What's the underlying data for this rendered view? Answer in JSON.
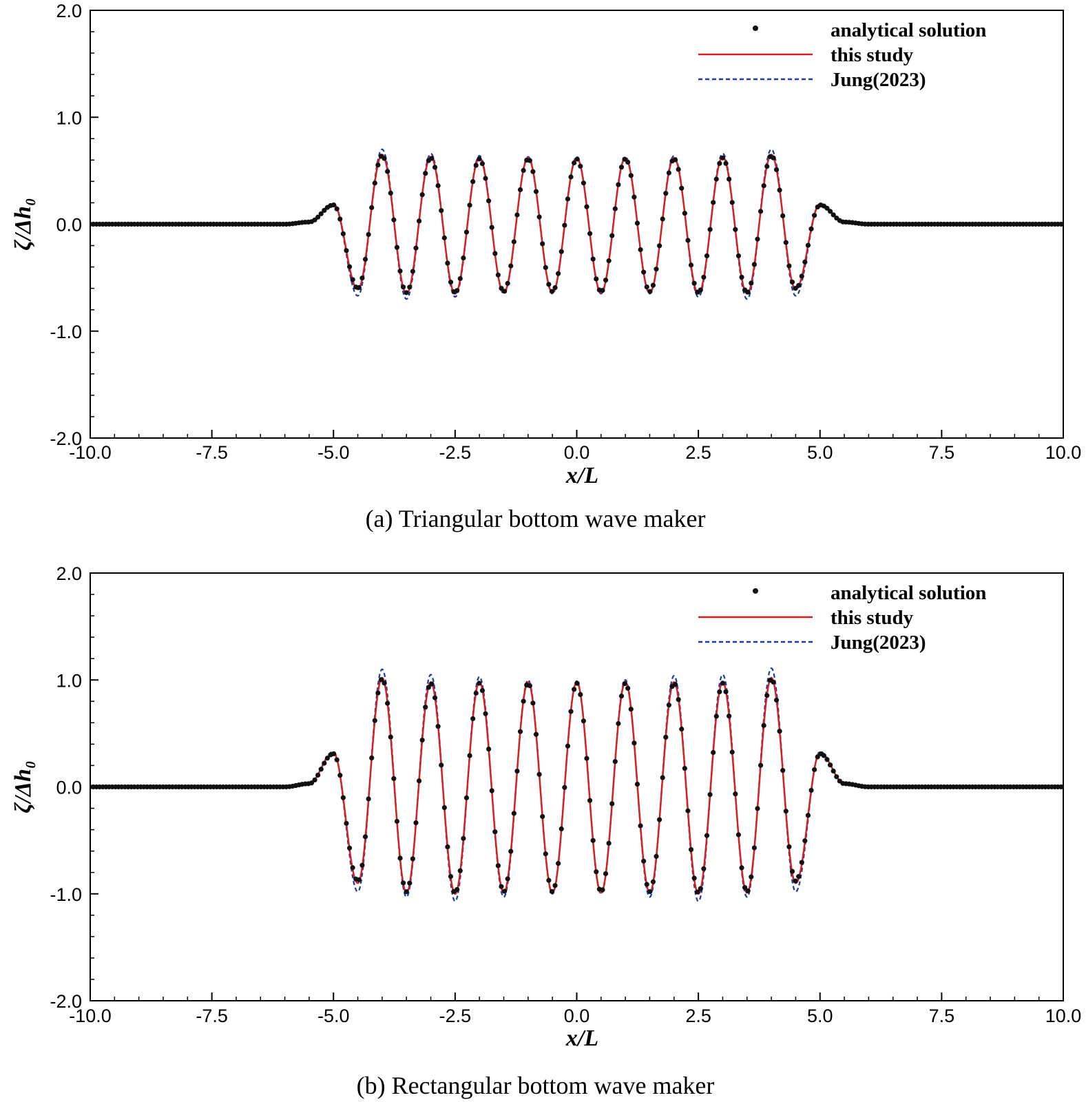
{
  "chart_data": [
    {
      "type": "line",
      "panel": "a",
      "caption": "(a)  Triangular bottom wave maker",
      "xlabel": "x/L",
      "ylabel": "ζ/Δh₀",
      "xlim": [
        -10,
        10
      ],
      "ylim": [
        -2,
        2
      ],
      "xticks": [
        "-10.0",
        "-7.5",
        "-5.0",
        "-2.5",
        "0.0",
        "2.5",
        "5.0",
        "7.5",
        "10.0"
      ],
      "yticks": [
        "-2.0",
        "-1.0",
        "0.0",
        "1.0",
        "2.0"
      ],
      "grid": false,
      "legend_position": "top-right",
      "legend": [
        "analytical solution",
        "this study",
        "Jung(2023)"
      ],
      "series": [
        {
          "name": "analytical solution",
          "style": "dots",
          "color": "#111111",
          "x": [
            -10,
            -6,
            -5.5,
            -5.0,
            -4.5,
            -4.0,
            -3.5,
            -3.0,
            -2.5,
            -2.0,
            -1.5,
            -1.0,
            -0.5,
            0.0,
            0.5,
            1.0,
            1.5,
            2.0,
            2.5,
            3.0,
            3.5,
            4.0,
            4.5,
            5.0,
            5.5,
            6,
            10
          ],
          "y": [
            0,
            0,
            0.02,
            0.18,
            -0.6,
            0.64,
            -0.64,
            0.62,
            -0.64,
            0.61,
            -0.63,
            0.61,
            -0.63,
            0.61,
            -0.63,
            0.61,
            -0.63,
            0.61,
            -0.64,
            0.62,
            -0.64,
            0.64,
            -0.6,
            0.18,
            0.02,
            0,
            0
          ]
        },
        {
          "name": "this study",
          "style": "solid",
          "color": "#d42020",
          "x": [
            -10,
            -6,
            -5.5,
            -5.0,
            -4.5,
            -4.0,
            -3.5,
            -3.0,
            -2.5,
            -2.0,
            -1.5,
            -1.0,
            -0.5,
            0.0,
            0.5,
            1.0,
            1.5,
            2.0,
            2.5,
            3.0,
            3.5,
            4.0,
            4.5,
            5.0,
            5.5,
            6,
            10
          ],
          "y": [
            0,
            0,
            0.02,
            0.19,
            -0.61,
            0.65,
            -0.65,
            0.63,
            -0.65,
            0.62,
            -0.64,
            0.62,
            -0.64,
            0.62,
            -0.64,
            0.62,
            -0.64,
            0.62,
            -0.65,
            0.63,
            -0.65,
            0.65,
            -0.61,
            0.19,
            0.02,
            0,
            0
          ]
        },
        {
          "name": "Jung(2023)",
          "style": "dashed",
          "color": "#1a3aa8",
          "x": [
            -10,
            -6,
            -5.5,
            -5.0,
            -4.5,
            -4.0,
            -3.5,
            -3.0,
            -2.5,
            -2.0,
            -1.5,
            -1.0,
            -0.5,
            0.0,
            0.5,
            1.0,
            1.5,
            2.0,
            2.5,
            3.0,
            3.5,
            4.0,
            4.5,
            5.0,
            5.5,
            6,
            10
          ],
          "y": [
            0,
            0,
            0.02,
            0.19,
            -0.67,
            0.7,
            -0.7,
            0.66,
            -0.68,
            0.64,
            -0.65,
            0.63,
            -0.65,
            0.63,
            -0.65,
            0.63,
            -0.65,
            0.64,
            -0.68,
            0.66,
            -0.7,
            0.7,
            -0.67,
            0.19,
            0.02,
            0,
            0
          ]
        }
      ]
    },
    {
      "type": "line",
      "panel": "b",
      "caption": "(b) Rectangular bottom wave maker",
      "xlabel": "x/L",
      "ylabel": "ζ/Δh₀",
      "xlim": [
        -10,
        10
      ],
      "ylim": [
        -2,
        2
      ],
      "xticks": [
        "-10.0",
        "-7.5",
        "-5.0",
        "-2.5",
        "0.0",
        "2.5",
        "5.0",
        "7.5",
        "10.0"
      ],
      "yticks": [
        "-2.0",
        "-1.0",
        "0.0",
        "1.0",
        "2.0"
      ],
      "grid": false,
      "legend_position": "top-right",
      "legend": [
        "analytical solution",
        "this study",
        "Jung(2023)"
      ],
      "series": [
        {
          "name": "analytical solution",
          "style": "dots",
          "color": "#111111",
          "x": [
            -10,
            -6,
            -5.5,
            -5.0,
            -4.5,
            -4.0,
            -3.5,
            -3.0,
            -2.5,
            -2.0,
            -1.5,
            -1.0,
            -0.5,
            0.0,
            0.5,
            1.0,
            1.5,
            2.0,
            2.5,
            3.0,
            3.5,
            4.0,
            4.5,
            5.0,
            5.5,
            6,
            10
          ],
          "y": [
            0,
            0,
            0.03,
            0.31,
            -0.88,
            1.01,
            -0.98,
            0.97,
            -0.99,
            0.97,
            -0.98,
            0.97,
            -0.98,
            0.97,
            -0.98,
            0.97,
            -0.98,
            0.97,
            -0.99,
            0.97,
            -0.98,
            1.01,
            -0.88,
            0.31,
            0.03,
            0,
            0
          ]
        },
        {
          "name": "this study",
          "style": "solid",
          "color": "#d42020",
          "x": [
            -10,
            -6,
            -5.5,
            -5.0,
            -4.5,
            -4.0,
            -3.5,
            -3.0,
            -2.5,
            -2.0,
            -1.5,
            -1.0,
            -0.5,
            0.0,
            0.5,
            1.0,
            1.5,
            2.0,
            2.5,
            3.0,
            3.5,
            4.0,
            4.5,
            5.0,
            5.5,
            6,
            10
          ],
          "y": [
            0,
            0,
            0.03,
            0.32,
            -0.9,
            1.02,
            -0.99,
            0.98,
            -1.0,
            0.98,
            -0.99,
            0.98,
            -0.99,
            0.98,
            -0.99,
            0.98,
            -0.99,
            0.98,
            -1.0,
            0.98,
            -0.99,
            1.02,
            -0.9,
            0.32,
            0.03,
            0,
            0
          ]
        },
        {
          "name": "Jung(2023)",
          "style": "dashed",
          "color": "#1a3aa8",
          "x": [
            -10,
            -6,
            -5.5,
            -5.0,
            -4.5,
            -4.0,
            -3.5,
            -3.0,
            -2.5,
            -2.0,
            -1.5,
            -1.0,
            -0.5,
            0.0,
            0.5,
            1.0,
            1.5,
            2.0,
            2.5,
            3.0,
            3.5,
            4.0,
            4.5,
            5.0,
            5.5,
            6,
            10
          ],
          "y": [
            0,
            0,
            0.03,
            0.33,
            -0.98,
            1.1,
            -1.03,
            1.05,
            -1.07,
            1.03,
            -1.03,
            1.0,
            -1.0,
            0.99,
            -1.0,
            1.0,
            -1.03,
            1.04,
            -1.07,
            1.05,
            -1.03,
            1.11,
            -0.98,
            0.33,
            0.03,
            0,
            0
          ]
        }
      ]
    }
  ]
}
